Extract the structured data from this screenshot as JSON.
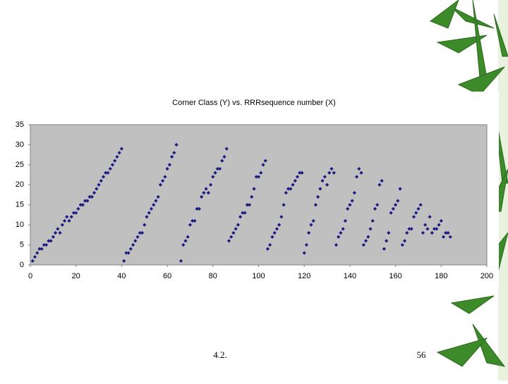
{
  "chart_data": {
    "type": "scatter",
    "title": "Corner Class (Y) vs. RRRsequence number (X)",
    "x": [
      1,
      2,
      3,
      4,
      5,
      6,
      7,
      8,
      9,
      10,
      11,
      12,
      13,
      14,
      15,
      16,
      17,
      18,
      19,
      20,
      21,
      22,
      23,
      24,
      25,
      26,
      27,
      28,
      29,
      30,
      31,
      32,
      33,
      34,
      35,
      36,
      37,
      38,
      39,
      40,
      41,
      42,
      43,
      44,
      45,
      46,
      47,
      48,
      49,
      50,
      51,
      52,
      53,
      54,
      55,
      56,
      57,
      58,
      59,
      60,
      61,
      62,
      63,
      64,
      66,
      67,
      68,
      69,
      70,
      71,
      72,
      73,
      74,
      75,
      76,
      77,
      78,
      79,
      80,
      81,
      82,
      83,
      84,
      85,
      86,
      87,
      88,
      89,
      90,
      91,
      92,
      93,
      94,
      95,
      96,
      97,
      98,
      99,
      100,
      101,
      102,
      103,
      104,
      105,
      106,
      107,
      108,
      109,
      110,
      111,
      112,
      113,
      114,
      115,
      116,
      117,
      118,
      119,
      120,
      121,
      122,
      123,
      124,
      125,
      126,
      127,
      128,
      129,
      130,
      131,
      132,
      133,
      134,
      135,
      136,
      137,
      138,
      139,
      140,
      141,
      142,
      143,
      144,
      145,
      146,
      147,
      148,
      149,
      150,
      151,
      152,
      153,
      154,
      155,
      156,
      157,
      158,
      159,
      160,
      161,
      162,
      163,
      164,
      165,
      166,
      167,
      168,
      169,
      170,
      171,
      172,
      173,
      174,
      175,
      176,
      177,
      178,
      179,
      180,
      181,
      182,
      183,
      184
    ],
    "values": [
      1,
      2,
      3,
      4,
      4,
      5,
      5,
      6,
      6,
      7,
      8,
      9,
      8,
      10,
      11,
      12,
      11,
      12,
      13,
      13,
      14,
      15,
      15,
      16,
      16,
      17,
      17,
      18,
      19,
      20,
      21,
      22,
      23,
      23,
      24,
      25,
      26,
      27,
      28,
      29,
      1,
      3,
      3,
      4,
      5,
      6,
      7,
      8,
      8,
      10,
      12,
      13,
      14,
      15,
      16,
      17,
      20,
      21,
      22,
      24,
      25,
      27,
      28,
      30,
      1,
      5,
      6,
      7,
      10,
      11,
      11,
      14,
      14,
      17,
      18,
      19,
      18,
      20,
      22,
      23,
      24,
      24,
      26,
      27,
      29,
      6,
      7,
      8,
      9,
      10,
      12,
      13,
      13,
      15,
      15,
      17,
      19,
      22,
      22,
      23,
      25,
      26,
      4,
      5,
      7,
      8,
      9,
      10,
      12,
      15,
      18,
      19,
      19,
      20,
      21,
      22,
      23,
      23,
      3,
      5,
      8,
      10,
      11,
      15,
      17,
      19,
      21,
      22,
      20,
      23,
      24,
      23,
      5,
      7,
      8,
      9,
      11,
      14,
      15,
      16,
      18,
      22,
      24,
      23,
      5,
      6,
      7,
      9,
      11,
      14,
      15,
      20,
      21,
      4,
      6,
      8,
      13,
      14,
      15,
      16,
      19,
      5,
      6,
      8,
      9,
      9,
      12,
      13,
      14,
      15,
      8,
      10,
      9,
      12,
      8,
      9,
      9,
      10,
      11,
      7,
      8,
      8,
      7
    ],
    "color": "#1c1c80",
    "xlim": [
      0,
      200
    ],
    "ylim": [
      0,
      35
    ],
    "xticks": [
      0,
      20,
      40,
      60,
      80,
      100,
      120,
      140,
      160,
      180,
      200
    ],
    "yticks": [
      0,
      5,
      10,
      15,
      20,
      25,
      30,
      35
    ],
    "grid": false
  },
  "slide": {
    "footer": "4.2.",
    "page_number": "56"
  }
}
